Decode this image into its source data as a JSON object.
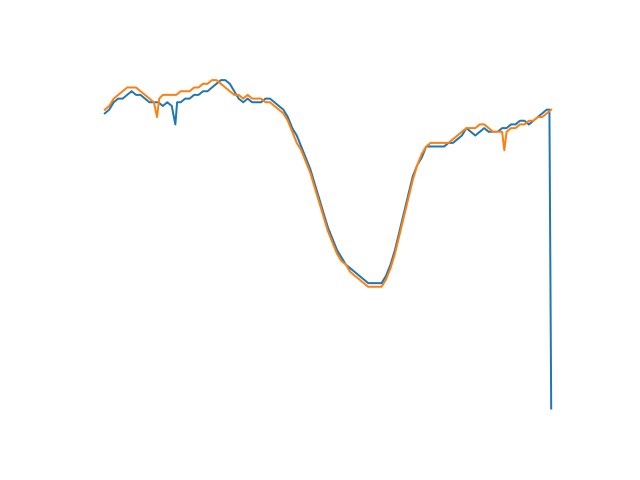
{
  "chart_data": {
    "type": "line",
    "title": "",
    "xlabel": "",
    "ylabel": "",
    "axes_visible": false,
    "grid": false,
    "xlim": [
      0,
      100
    ],
    "ylim": [
      0,
      100
    ],
    "series": [
      {
        "color": "#1f77b4",
        "x": [
          0,
          1,
          2,
          3,
          4,
          5,
          6,
          7,
          8,
          9,
          10,
          11,
          12,
          13,
          14,
          15,
          15.8,
          16.2,
          17,
          18,
          19,
          20,
          21,
          22,
          23,
          24,
          25,
          26,
          27,
          28,
          29,
          30,
          31,
          32,
          33,
          34,
          35,
          36,
          37,
          38,
          39,
          40,
          41,
          42,
          43,
          44,
          45,
          46,
          47,
          48,
          49,
          50,
          51,
          52,
          53,
          54,
          55,
          56,
          57,
          58,
          59,
          60,
          61,
          62,
          63,
          64,
          65,
          66,
          67,
          68,
          69,
          70,
          71,
          72,
          73,
          74,
          75,
          76,
          77,
          78,
          79,
          80,
          81,
          82,
          83,
          84,
          85,
          86,
          87,
          88,
          89,
          90,
          91,
          92,
          93,
          94,
          95,
          96,
          97,
          98,
          99,
          99.6,
          100
        ],
        "y": [
          85,
          86,
          88,
          89,
          89,
          90,
          91,
          90,
          90,
          89,
          88,
          88,
          88,
          87,
          88,
          87,
          82,
          88,
          88,
          89,
          89,
          90,
          90,
          91,
          91,
          92,
          93,
          94,
          94,
          93,
          91,
          89,
          88,
          89,
          88,
          88,
          88,
          89,
          89,
          88,
          87,
          86,
          84,
          81,
          79,
          76,
          73,
          70,
          66,
          62,
          58,
          54,
          51,
          48,
          46,
          44,
          43,
          42,
          41,
          40,
          39,
          39,
          39,
          39,
          41,
          44,
          48,
          53,
          58,
          63,
          68,
          71,
          73,
          76,
          76,
          76,
          76,
          76,
          77,
          77,
          78,
          79,
          81,
          80,
          79,
          80,
          81,
          80,
          80,
          80,
          81,
          81,
          82,
          82,
          83,
          83,
          82,
          83,
          84,
          85,
          86,
          86,
          5
        ]
      },
      {
        "color": "#ff7f0e",
        "x": [
          0,
          1,
          2,
          3,
          4,
          5,
          6,
          7,
          8,
          9,
          10,
          11,
          11.7,
          12.2,
          13,
          14,
          15,
          16,
          17,
          18,
          19,
          20,
          21,
          22,
          23,
          24,
          25,
          26,
          27,
          28,
          29,
          30,
          31,
          32,
          33,
          34,
          35,
          36,
          37,
          38,
          39,
          40,
          41,
          42,
          43,
          44,
          45,
          46,
          47,
          48,
          49,
          50,
          51,
          52,
          53,
          54,
          55,
          56,
          57,
          58,
          59,
          60,
          61,
          62,
          63,
          64,
          65,
          66,
          67,
          68,
          69,
          70,
          71,
          72,
          73,
          74,
          75,
          76,
          77,
          78,
          79,
          80,
          81,
          82,
          83,
          84,
          85,
          86,
          87,
          88,
          89,
          89.5,
          90,
          91,
          92,
          93,
          94,
          95,
          96,
          97,
          98,
          99,
          100
        ],
        "y": [
          86,
          87,
          89,
          90,
          91,
          92,
          92,
          92,
          91,
          90,
          89,
          88,
          84,
          89,
          90,
          90,
          90,
          90,
          91,
          91,
          91,
          92,
          92,
          93,
          93,
          94,
          94,
          93,
          92,
          91,
          90,
          90,
          89,
          90,
          89,
          89,
          89,
          88,
          88,
          87,
          86,
          85,
          83,
          80,
          77,
          75,
          72,
          69,
          65,
          61,
          57,
          53,
          50,
          47,
          45,
          44,
          42,
          41,
          40,
          39,
          38,
          38,
          38,
          38,
          40,
          43,
          47,
          52,
          57,
          62,
          67,
          71,
          74,
          76,
          77,
          77,
          77,
          77,
          77,
          78,
          79,
          80,
          81,
          81,
          81,
          82,
          82,
          81,
          80,
          80,
          80,
          75,
          80,
          81,
          81,
          82,
          82,
          83,
          83,
          84,
          84,
          85,
          86
        ]
      }
    ]
  }
}
